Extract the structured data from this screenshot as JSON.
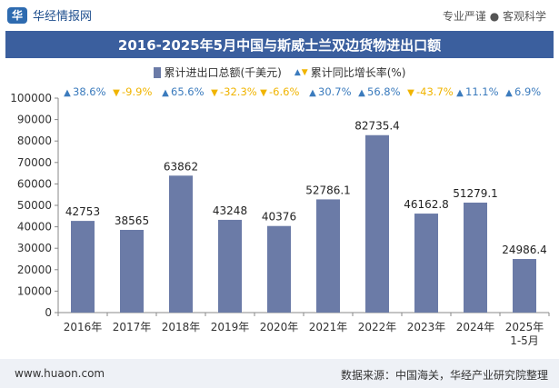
{
  "header": {
    "brand_name": "华经情报网",
    "slogan": "专业严谨 ● 客观科学"
  },
  "chart_data": {
    "type": "bar",
    "title": "2016-2025年5月中国与斯威士兰双边货物进出口额",
    "categories": [
      "2016年",
      "2017年",
      "2018年",
      "2019年",
      "2020年",
      "2021年",
      "2022年",
      "2023年",
      "2024年",
      "2025年\n1-5月"
    ],
    "series": [
      {
        "name": "累计进出口总额(千美元)",
        "values": [
          42753,
          38565,
          63862,
          43248,
          40376,
          52786.1,
          82735.4,
          46162.8,
          51279.1,
          24986.4
        ],
        "labels": [
          "42753",
          "38565",
          "63862",
          "43248",
          "40376",
          "52786.1",
          "82735.4",
          "46162.8",
          "51279.1",
          "24986.4"
        ],
        "color": "#6b7ba7"
      },
      {
        "name": "累计同比增长率(%)",
        "values": [
          38.6,
          -9.9,
          65.6,
          -32.3,
          -6.6,
          30.7,
          56.8,
          -43.7,
          11.1,
          6.9
        ],
        "labels": [
          "38.6%",
          "-9.9%",
          "65.6%",
          "-32.3%",
          "-6.6%",
          "30.7%",
          "56.8%",
          "-43.7%",
          "11.1%",
          "6.9%"
        ]
      }
    ],
    "yticks": [
      "0",
      "10000",
      "20000",
      "30000",
      "40000",
      "50000",
      "60000",
      "70000",
      "80000",
      "90000",
      "100000"
    ],
    "ylim": [
      0,
      100000
    ],
    "colors": {
      "up": "#3b7bbd",
      "down": "#f0b400",
      "bar": "#6b7ba7"
    },
    "legend_position": "top-center",
    "grid": false
  },
  "footer": {
    "url": "www.huaon.com",
    "source": "数据来源：中国海关，华经产业研究院整理"
  }
}
